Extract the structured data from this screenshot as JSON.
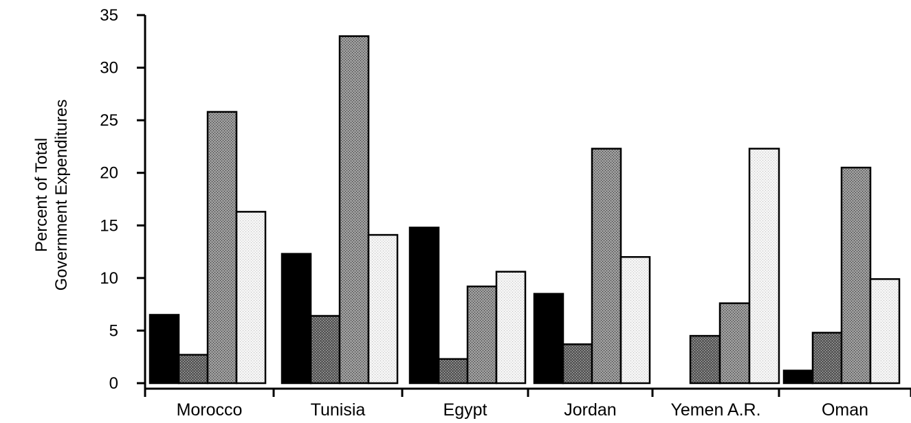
{
  "chart_data": {
    "type": "bar",
    "title": "",
    "ylabel_lines": [
      "Percent of Total",
      "Government Expenditures"
    ],
    "xlabel": "",
    "ylim": [
      0,
      35
    ],
    "yticks": [
      "0",
      "5",
      "10",
      "15",
      "20",
      "25",
      "30",
      "35"
    ],
    "grid": false,
    "legend": "none",
    "categories": [
      "Morocco",
      "Tunisia",
      "Egypt",
      "Jordan",
      "Yemen A.R.",
      "Oman"
    ],
    "series": [
      {
        "fill": "black-solid",
        "values": [
          6.5,
          12.3,
          14.8,
          8.5,
          0,
          1.2
        ]
      },
      {
        "fill": "dark-stipple",
        "values": [
          2.7,
          6.4,
          2.3,
          3.7,
          4.5,
          4.8
        ]
      },
      {
        "fill": "medium-stipple",
        "values": [
          25.8,
          33.0,
          9.2,
          22.3,
          7.6,
          20.5
        ]
      },
      {
        "fill": "light-stipple",
        "values": [
          16.3,
          14.1,
          10.6,
          12.0,
          22.3,
          9.9
        ]
      }
    ]
  }
}
